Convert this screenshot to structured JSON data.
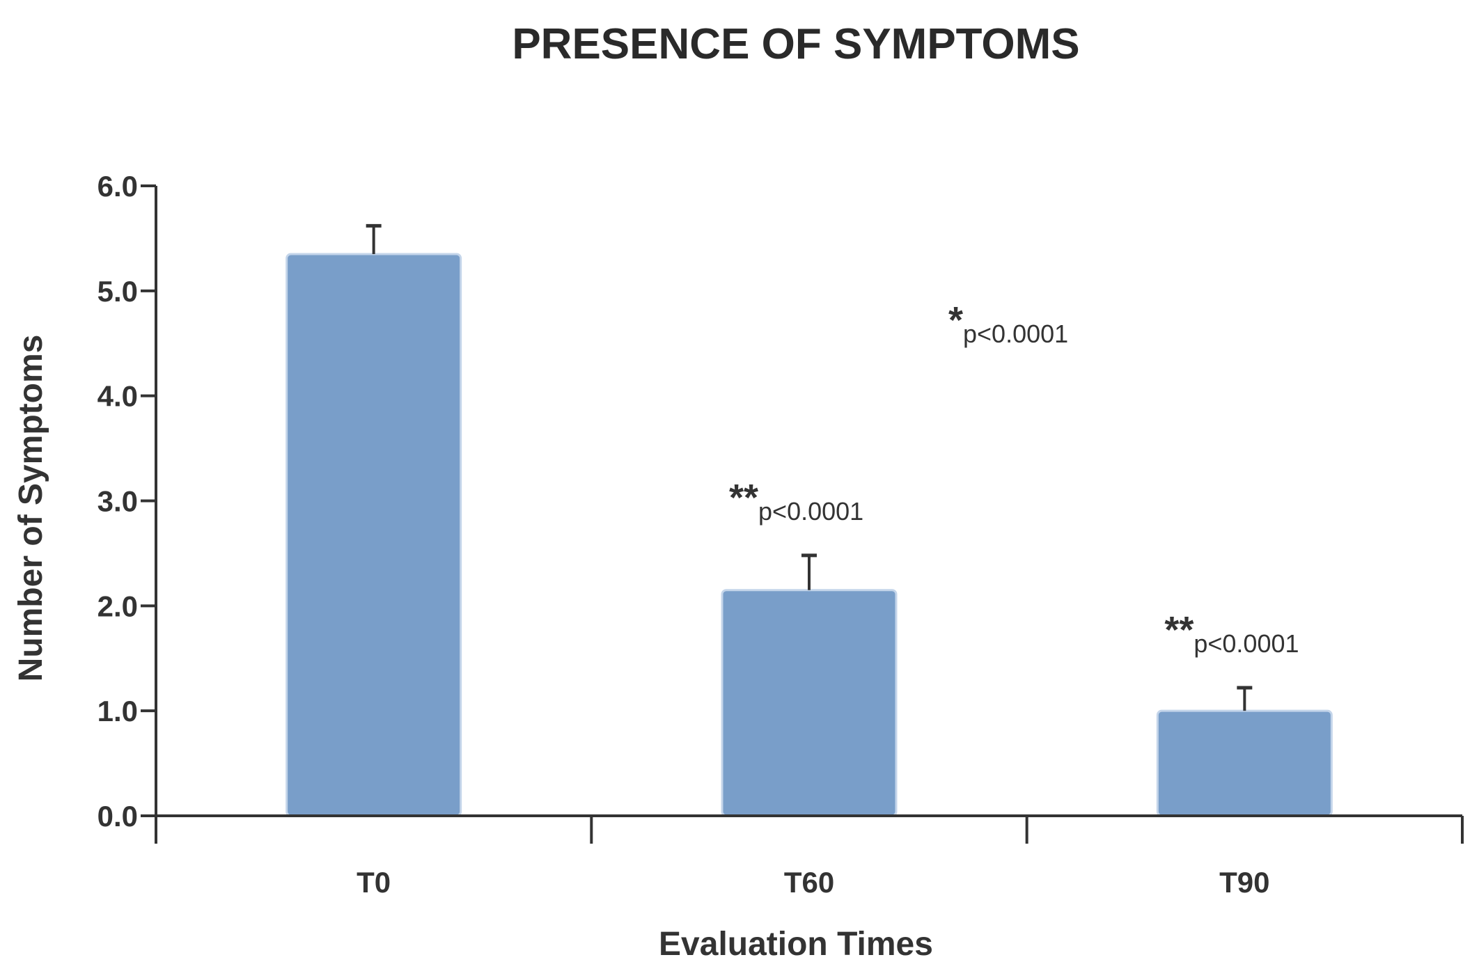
{
  "chart_data": {
    "type": "bar",
    "title": "PRESENCE OF SYMPTOMS",
    "xlabel": "Evaluation Times",
    "ylabel": "Number of Symptoms",
    "categories": [
      "T0",
      "T60",
      "T90"
    ],
    "values": [
      5.35,
      2.15,
      1.0
    ],
    "error_upper": [
      5.62,
      2.48,
      1.22
    ],
    "ylim": [
      0,
      6
    ],
    "yticks": [
      "0.0",
      "1.0",
      "2.0",
      "3.0",
      "4.0",
      "5.0",
      "6.0"
    ],
    "ytick_values": [
      0,
      1,
      2,
      3,
      4,
      5,
      6
    ],
    "bar_color": "#799ec9",
    "bar_edge_color": "#c4d5ea",
    "axis_color": "#333333",
    "annotations": [
      {
        "star": "*",
        "text": "p<0.0001",
        "position": "upper-right of plot area"
      },
      {
        "star": "**",
        "text": "p<0.0001",
        "category": "T60"
      },
      {
        "star": "**",
        "text": "p<0.0001",
        "category": "T90"
      }
    ]
  }
}
